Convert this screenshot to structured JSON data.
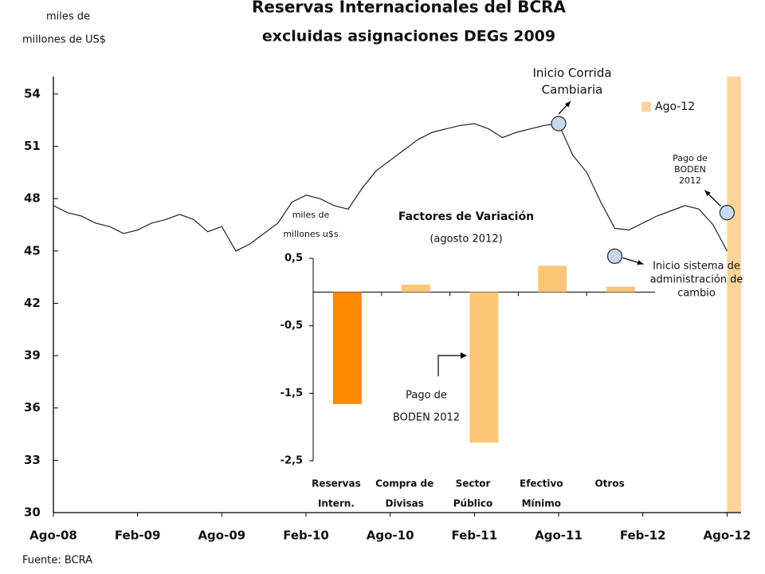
{
  "chart_data": [
    {
      "type": "line",
      "title": "Reservas Internacionales del BCRA",
      "subtitle": "excluidas asignaciones DEGs 2009",
      "y_label": [
        "miles de",
        "millones de US$"
      ],
      "source": "Fuente: BCRA",
      "xlim": [
        "2008-08",
        "2012-09"
      ],
      "xticks": [
        {
          "value": "2008-08",
          "label": "Ago-08"
        },
        {
          "value": "2009-02",
          "label": "Feb-09"
        },
        {
          "value": "2009-08",
          "label": "Ago-09"
        },
        {
          "value": "2010-02",
          "label": "Feb-10"
        },
        {
          "value": "2010-08",
          "label": "Ago-10"
        },
        {
          "value": "2011-02",
          "label": "Feb-11"
        },
        {
          "value": "2011-08",
          "label": "Ago-11"
        },
        {
          "value": "2012-02",
          "label": "Feb-12"
        },
        {
          "value": "2012-08",
          "label": "Ago-12"
        }
      ],
      "ylim": [
        30,
        55
      ],
      "yticks": [
        30,
        33,
        36,
        39,
        42,
        45,
        48,
        51,
        54
      ],
      "x": [
        "2008-08",
        "2008-09",
        "2008-10",
        "2008-11",
        "2008-12",
        "2009-01",
        "2009-02",
        "2009-03",
        "2009-04",
        "2009-05",
        "2009-06",
        "2009-07",
        "2009-08",
        "2009-09",
        "2009-10",
        "2009-11",
        "2009-12",
        "2010-01",
        "2010-02",
        "2010-03",
        "2010-04",
        "2010-05",
        "2010-06",
        "2010-07",
        "2010-08",
        "2010-09",
        "2010-10",
        "2010-11",
        "2010-12",
        "2011-01",
        "2011-02",
        "2011-03",
        "2011-04",
        "2011-05",
        "2011-06",
        "2011-07",
        "2011-08",
        "2011-09",
        "2011-10",
        "2011-11",
        "2011-12",
        "2012-01",
        "2012-02",
        "2012-03",
        "2012-04",
        "2012-05",
        "2012-06",
        "2012-07",
        "2012-08"
      ],
      "series": [
        {
          "name": "Reservas",
          "color": "#222222",
          "values": [
            47.6,
            47.2,
            47.0,
            46.6,
            46.4,
            46.0,
            46.2,
            46.6,
            46.8,
            47.1,
            46.8,
            46.1,
            46.4,
            45.0,
            45.4,
            46.0,
            46.6,
            47.8,
            48.2,
            48.0,
            47.6,
            47.4,
            48.6,
            49.6,
            50.2,
            50.8,
            51.4,
            51.8,
            52.0,
            52.2,
            52.3,
            52.0,
            51.5,
            51.8,
            52.0,
            52.2,
            52.3,
            50.5,
            49.5,
            47.8,
            46.3,
            46.2,
            46.6,
            47.0,
            47.3,
            47.6,
            47.4,
            46.5,
            45.0
          ]
        }
      ],
      "highlight": {
        "name": "Ago-12",
        "x": "2012-08",
        "color": "#fbd49c"
      },
      "legend": "top-right",
      "annotations": [
        {
          "text": [
            "Inicio Corrida",
            "Cambiaria"
          ],
          "x": "2011-08",
          "y": 52.3
        },
        {
          "text": [
            "Pago de",
            "BODEN",
            "2012"
          ],
          "x": "2012-08",
          "y": 47.2
        },
        {
          "text": [
            "Inicio sistema de",
            "administración de",
            "cambio"
          ],
          "x": "2011-12",
          "y": 44.7
        }
      ]
    },
    {
      "type": "bar",
      "title": "Factores de Variación",
      "subtitle": "(agosto 2012)",
      "y_label": [
        "miles de",
        "millones u$s"
      ],
      "categories": [
        [
          "Reservas",
          "Intern."
        ],
        [
          "Compra de",
          "Divisas"
        ],
        [
          "Sector",
          "Público"
        ],
        [
          "Efectivo",
          "Mínimo"
        ],
        [
          "Otros"
        ]
      ],
      "values": [
        -1.66,
        0.11,
        -2.23,
        0.39,
        0.08
      ],
      "colors": [
        "#ff8a00",
        "#fbc677",
        "#fbc677",
        "#fbc677",
        "#fbc677"
      ],
      "ylim": [
        -2.5,
        0.5
      ],
      "yticks": [
        {
          "value": 0.5,
          "label": "0,5"
        },
        {
          "value": -0.5,
          "label": "-0,5"
        },
        {
          "value": -1.5,
          "label": "-1,5"
        },
        {
          "value": -2.5,
          "label": "-2,5"
        }
      ],
      "annotation": [
        "Pago de",
        "BODEN 2012"
      ]
    }
  ]
}
